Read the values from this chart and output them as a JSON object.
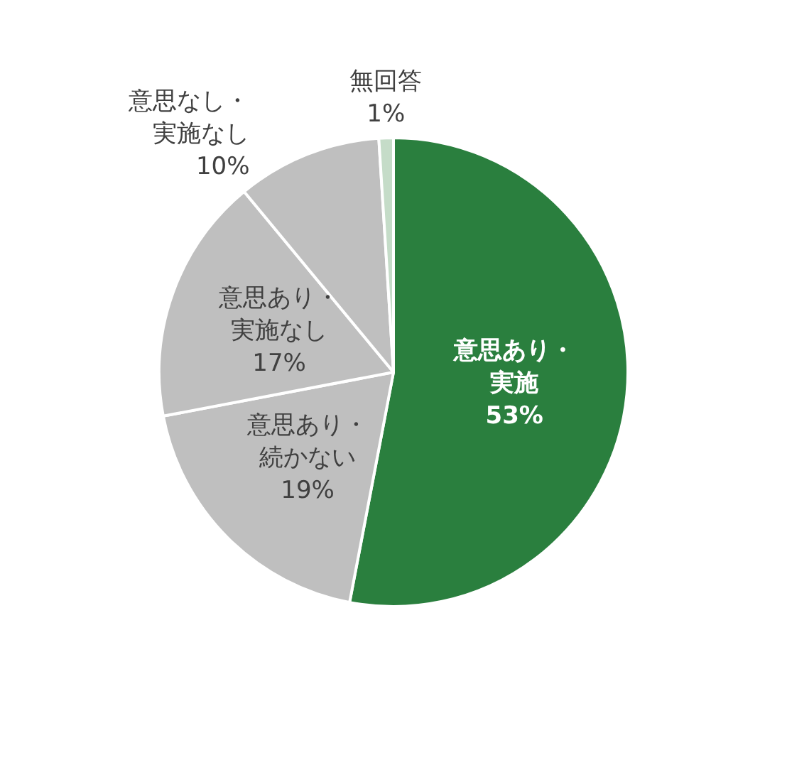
{
  "chart_data": {
    "type": "pie",
    "categories": [
      "意思あり・実施",
      "意思あり・続かない",
      "意思あり・実施なし",
      "意思なし・実施なし",
      "無回答"
    ],
    "values": [
      53,
      19,
      17,
      10,
      1
    ],
    "value_labels": [
      "53%",
      "19%",
      "17%",
      "10%",
      "1%"
    ],
    "colors": [
      "#2a7f3e",
      "#bfbfbf",
      "#bfbfbf",
      "#bfbfbf",
      "#c5dcc8"
    ],
    "legend": false
  }
}
